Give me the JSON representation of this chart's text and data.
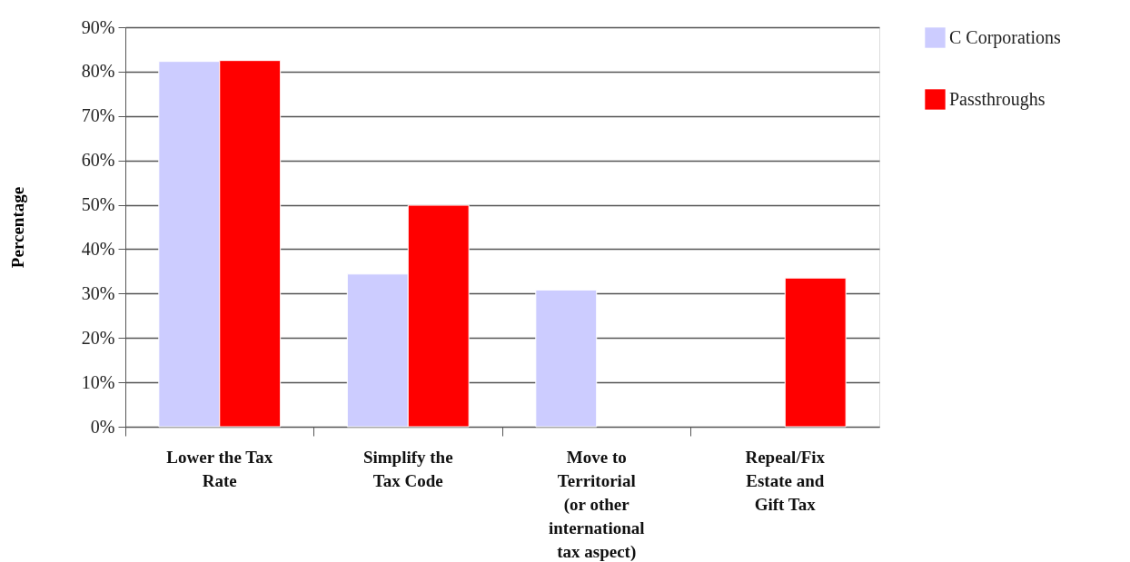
{
  "chart_data": {
    "type": "bar",
    "ylabel": "Percentage",
    "categories": [
      "Lower the Tax Rate",
      "Simplify the Tax Code",
      "Move to Territorial (or other international tax aspect)",
      "Repeal/Fix Estate and Gift Tax"
    ],
    "series": [
      {
        "name": "C Corporations",
        "color": "#ccccff",
        "values": [
          82.3,
          34.4,
          30.8,
          null
        ]
      },
      {
        "name": "Passthroughs",
        "color": "#ff0000",
        "values": [
          82.5,
          49.9,
          null,
          33.5
        ]
      }
    ],
    "ylim": [
      0,
      90
    ],
    "yticks": [
      {
        "value": 0,
        "label": "0%"
      },
      {
        "value": 10,
        "label": "10%"
      },
      {
        "value": 20,
        "label": "20%"
      },
      {
        "value": 30,
        "label": "30%"
      },
      {
        "value": 40,
        "label": "40%"
      },
      {
        "value": 50,
        "label": "50%"
      },
      {
        "value": 60,
        "label": "60%"
      },
      {
        "value": 70,
        "label": "70%"
      },
      {
        "value": 80,
        "label": "80%"
      },
      {
        "value": 90,
        "label": "90%"
      }
    ],
    "grid": "y",
    "legend": "right"
  }
}
